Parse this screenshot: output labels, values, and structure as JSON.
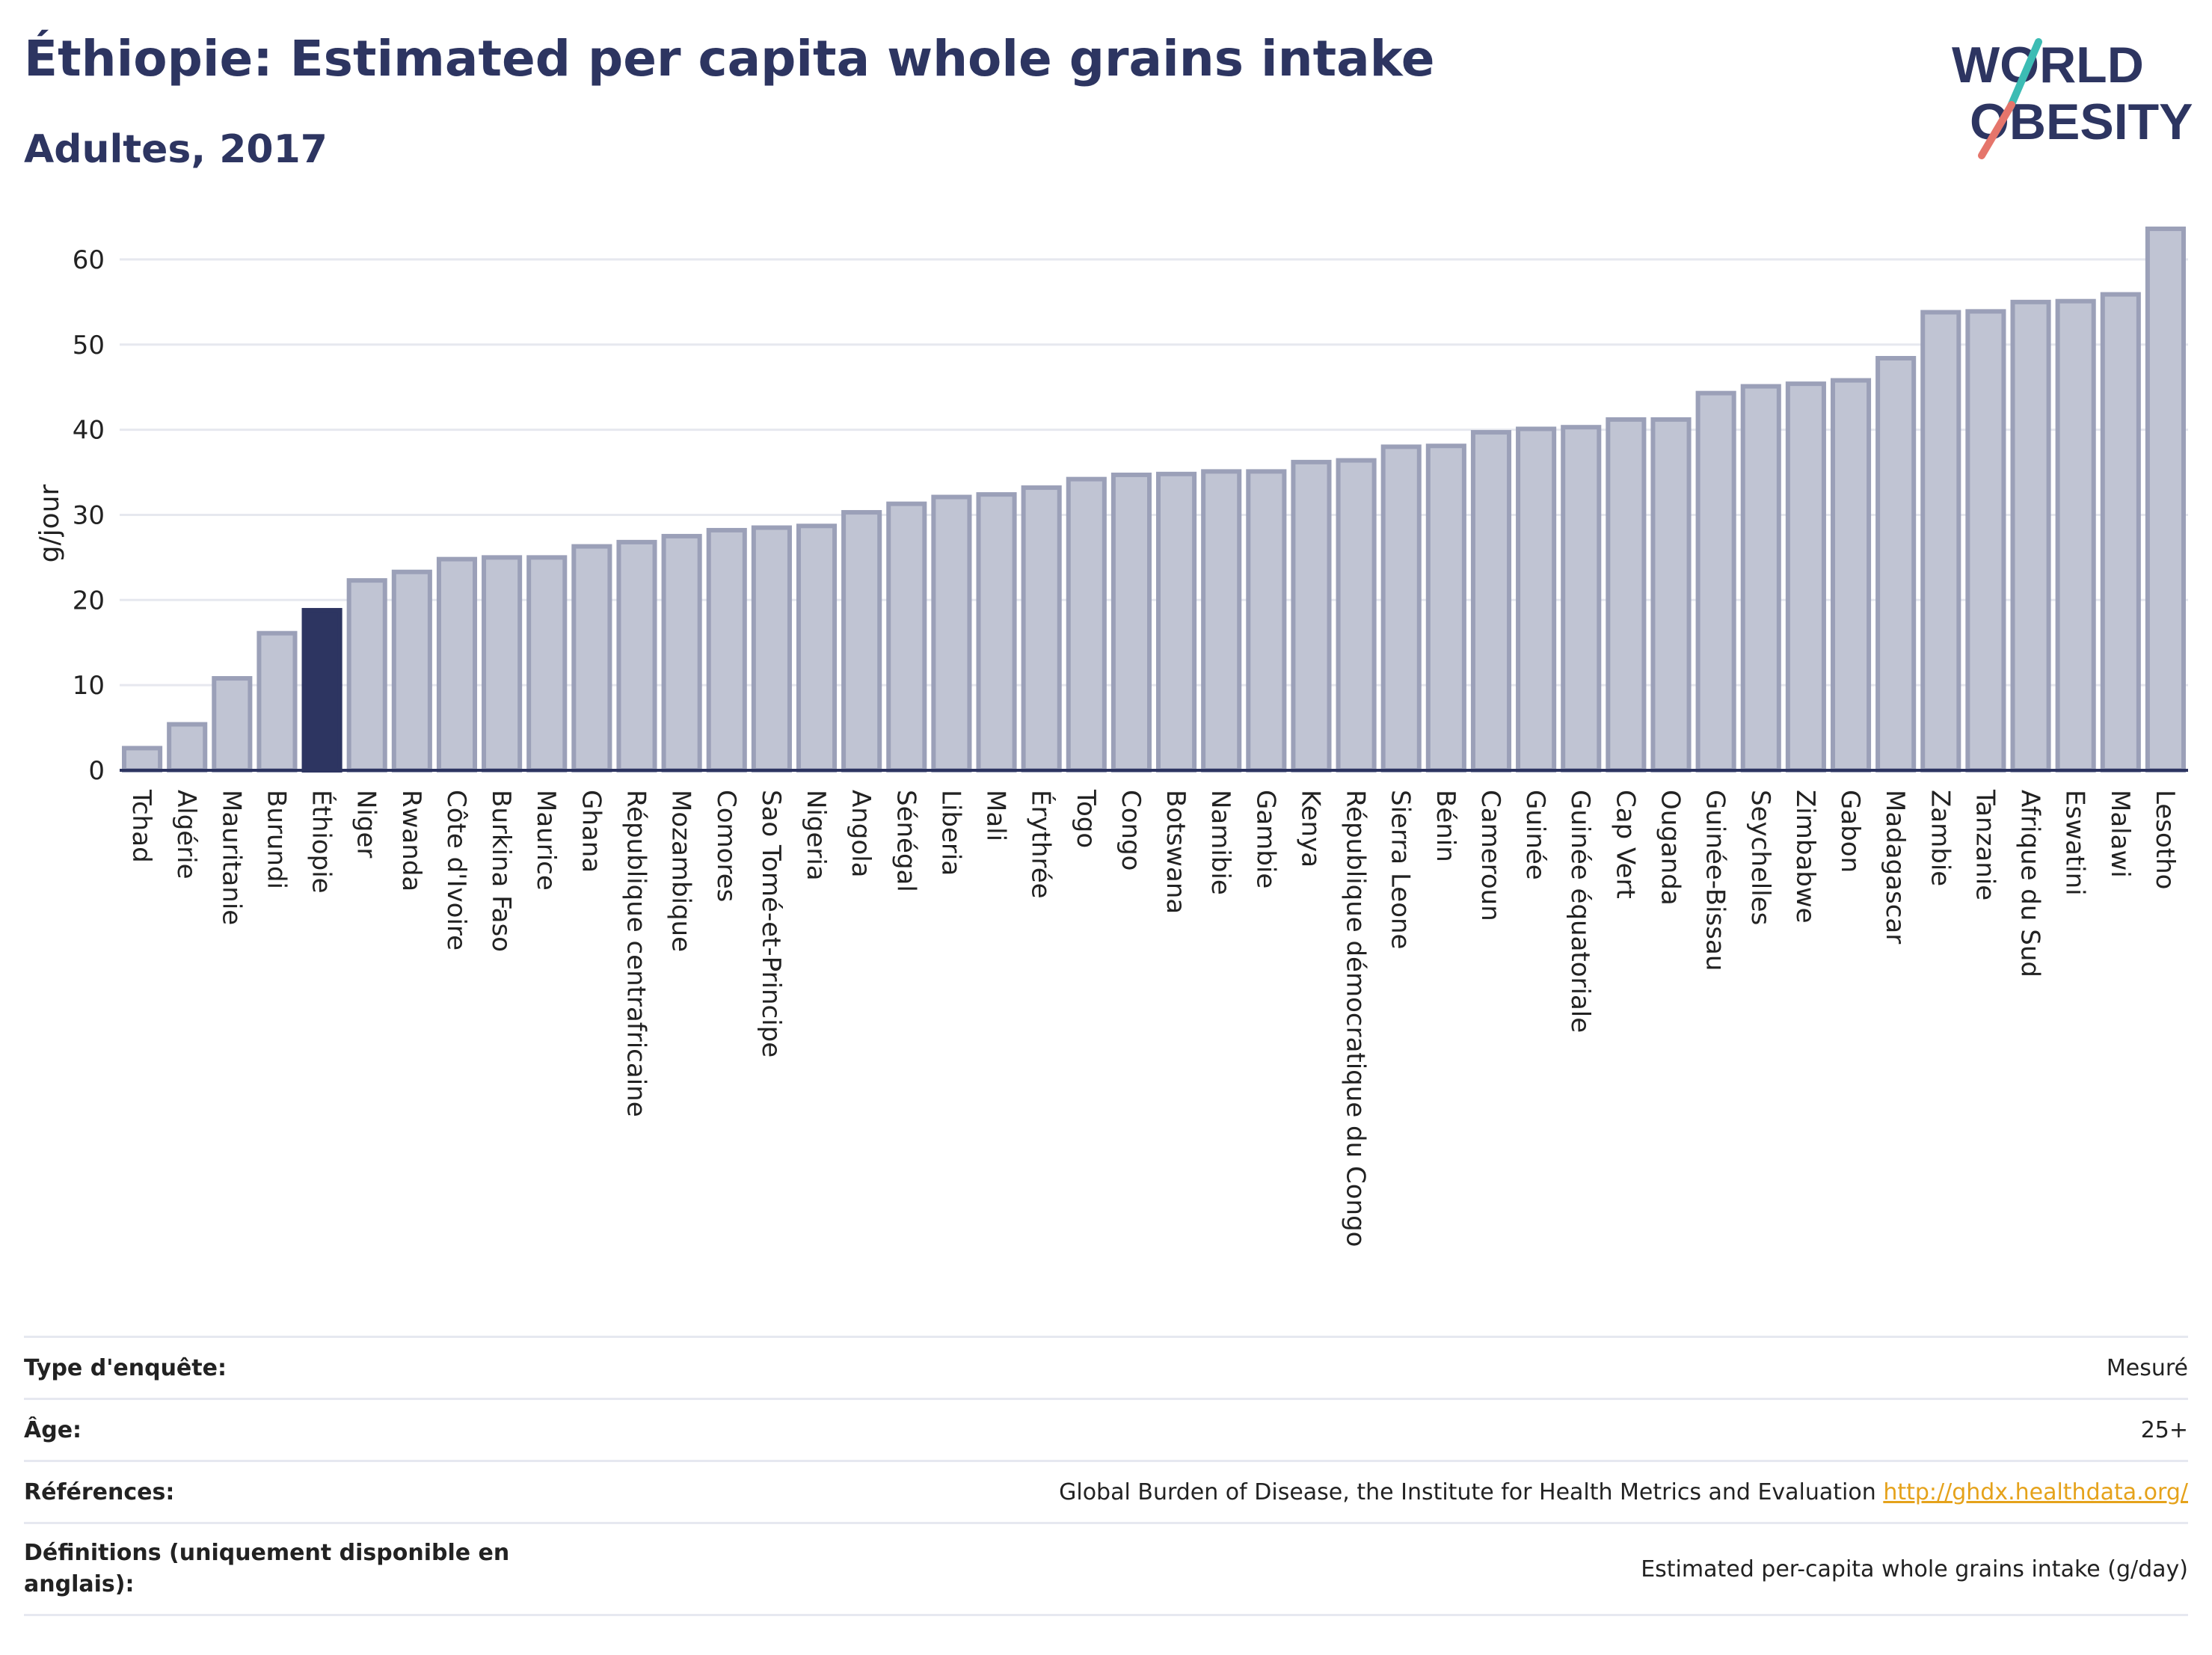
{
  "header": {
    "title": "Éthiopie: Estimated per capita whole grains intake",
    "subtitle": "Adultes, 2017"
  },
  "logo": {
    "line1": "WORLD",
    "line2": "OBESITY",
    "icon": "world-obesity-logo"
  },
  "colors": {
    "highlight": "#2d3561",
    "bar": "#c0c4d3",
    "bar_border": "#9ba0b8",
    "accent_teal": "#3cbcb4",
    "accent_coral": "#e5756b",
    "link": "#e5a21b"
  },
  "chart_data": {
    "type": "bar",
    "ylabel": "g/jour",
    "ylim": [
      0,
      65
    ],
    "yticks": [
      0,
      10,
      20,
      30,
      40,
      50,
      60
    ],
    "highlight": "Éthiopie",
    "categories": [
      "Tchad",
      "Algérie",
      "Mauritanie",
      "Burundi",
      "Éthiopie",
      "Niger",
      "Rwanda",
      "Côte d'Ivoire",
      "Burkina Faso",
      "Maurice",
      "Ghana",
      "République centrafricaine",
      "Mozambique",
      "Comores",
      "Sao Tomé-et-Principe",
      "Nigeria",
      "Angola",
      "Sénégal",
      "Liberia",
      "Mali",
      "Érythrée",
      "Togo",
      "Congo",
      "Botswana",
      "Namibie",
      "Gambie",
      "Kenya",
      "République démocratique du Congo",
      "Sierra Leone",
      "Bénin",
      "Cameroun",
      "Guinée",
      "Guinée équatoriale",
      "Cap Vert",
      "Ouganda",
      "Guinée-Bissau",
      "Seychelles",
      "Zimbabwe",
      "Gabon",
      "Madagascar",
      "Zambie",
      "Tanzanie",
      "Afrique du Sud",
      "Eswatini",
      "Malawi",
      "Lesotho"
    ],
    "values": [
      2.6,
      5.4,
      10.8,
      16.1,
      18.8,
      22.3,
      23.3,
      24.8,
      25.0,
      25.0,
      26.3,
      26.8,
      27.5,
      28.2,
      28.5,
      28.7,
      30.3,
      31.3,
      32.1,
      32.4,
      33.2,
      34.2,
      34.7,
      34.8,
      35.1,
      35.1,
      36.2,
      36.4,
      38.0,
      38.1,
      39.7,
      40.1,
      40.3,
      41.2,
      41.2,
      44.3,
      45.1,
      45.4,
      45.8,
      48.4,
      53.8,
      53.9,
      55.0,
      55.1,
      55.9,
      63.6
    ]
  },
  "info": {
    "rows": [
      {
        "label": "Type d'enquête:",
        "value": "Mesuré"
      },
      {
        "label": "Âge:",
        "value": "25+"
      },
      {
        "label": "Références:",
        "value": "Global Burden of Disease, the Institute for Health Metrics and Evaluation",
        "link": "http://ghdx.healthdata.org/"
      },
      {
        "label": "Définitions (uniquement disponible en anglais):",
        "value": "Estimated per-capita whole grains intake (g/day)"
      }
    ]
  }
}
